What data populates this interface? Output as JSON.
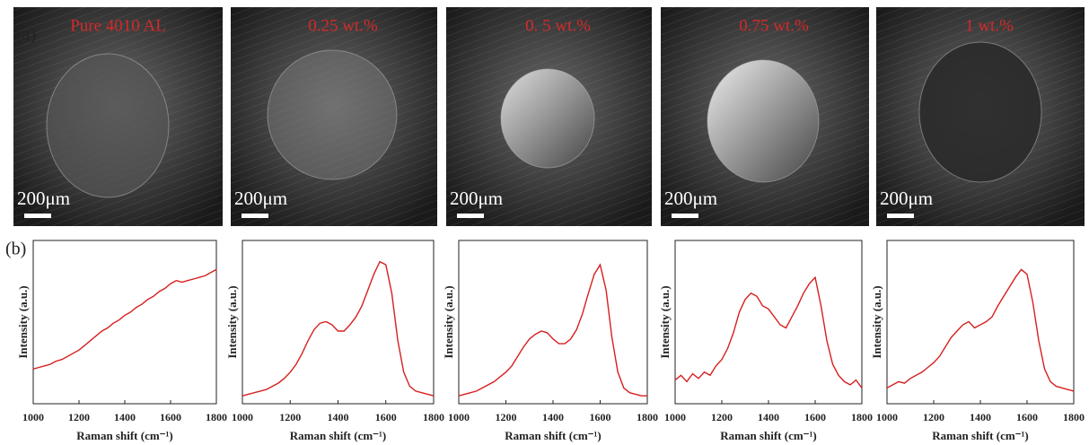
{
  "panel_a": "(a)",
  "panel_b": "(b)",
  "panels": [
    {
      "label": "Pure 4010 AL",
      "scale_bar": "200μm"
    },
    {
      "label": "0.25 wt.%",
      "scale_bar": "200μm"
    },
    {
      "label": "0. 5 wt.%",
      "scale_bar": "200μm"
    },
    {
      "label": "0.75 wt.%",
      "scale_bar": "200μm"
    },
    {
      "label": "1 wt.%",
      "scale_bar": "200μm"
    }
  ],
  "chart_data": [
    {
      "type": "line",
      "x_label": "Raman shift (cm⁻¹)",
      "y_label": "Intensity (a.u.)",
      "color": "#d62020",
      "xlim": [
        1000,
        1800
      ],
      "xticks": [
        1000,
        1200,
        1400,
        1600,
        1800
      ],
      "ylim": [
        0,
        100
      ],
      "x": [
        1000,
        1025,
        1050,
        1075,
        1100,
        1125,
        1150,
        1175,
        1200,
        1225,
        1250,
        1275,
        1300,
        1325,
        1350,
        1375,
        1400,
        1425,
        1450,
        1475,
        1500,
        1525,
        1550,
        1575,
        1600,
        1625,
        1650,
        1675,
        1700,
        1725,
        1750,
        1775,
        1800
      ],
      "values": [
        22,
        23,
        24,
        25,
        27,
        28,
        30,
        32,
        34,
        37,
        40,
        43,
        46,
        48,
        51,
        53,
        56,
        58,
        61,
        63,
        66,
        68,
        71,
        73,
        76,
        78,
        77,
        78,
        79,
        80,
        81,
        83,
        85
      ]
    },
    {
      "type": "line",
      "x_label": "Raman shift (cm⁻¹)",
      "y_label": "Intensity (a.u.)",
      "color": "#d62020",
      "xlim": [
        1000,
        1800
      ],
      "xticks": [
        1000,
        1200,
        1400,
        1600,
        1800
      ],
      "ylim": [
        0,
        100
      ],
      "x": [
        1000,
        1025,
        1050,
        1075,
        1100,
        1125,
        1150,
        1175,
        1200,
        1225,
        1250,
        1275,
        1300,
        1325,
        1350,
        1375,
        1400,
        1425,
        1450,
        1475,
        1500,
        1525,
        1550,
        1575,
        1600,
        1625,
        1650,
        1675,
        1700,
        1725,
        1750,
        1775,
        1800
      ],
      "values": [
        5,
        6,
        7,
        8,
        9,
        11,
        13,
        16,
        20,
        25,
        32,
        40,
        47,
        51,
        52,
        50,
        46,
        46,
        50,
        55,
        62,
        72,
        82,
        90,
        88,
        70,
        40,
        20,
        11,
        8,
        7,
        6,
        5
      ]
    },
    {
      "type": "line",
      "x_label": "Raman shift (cm⁻¹)",
      "y_label": "Intensity (a.u.)",
      "color": "#d62020",
      "xlim": [
        1000,
        1800
      ],
      "xticks": [
        1000,
        1200,
        1400,
        1600,
        1800
      ],
      "ylim": [
        0,
        100
      ],
      "x": [
        1000,
        1025,
        1050,
        1075,
        1100,
        1125,
        1150,
        1175,
        1200,
        1225,
        1250,
        1275,
        1300,
        1325,
        1350,
        1375,
        1400,
        1425,
        1450,
        1475,
        1500,
        1525,
        1550,
        1575,
        1600,
        1625,
        1650,
        1675,
        1700,
        1725,
        1750,
        1775,
        1800
      ],
      "values": [
        5,
        6,
        7,
        8,
        10,
        12,
        14,
        17,
        20,
        24,
        30,
        36,
        41,
        44,
        46,
        45,
        41,
        38,
        38,
        41,
        47,
        57,
        70,
        82,
        88,
        72,
        42,
        20,
        10,
        7,
        6,
        5,
        5
      ]
    },
    {
      "type": "line",
      "x_label": "Raman shift (cm⁻¹)",
      "y_label": "Intensity (a.u.)",
      "color": "#d62020",
      "xlim": [
        1000,
        1800
      ],
      "xticks": [
        1000,
        1200,
        1400,
        1600,
        1800
      ],
      "ylim": [
        0,
        100
      ],
      "x": [
        1000,
        1025,
        1050,
        1075,
        1100,
        1125,
        1150,
        1175,
        1200,
        1225,
        1250,
        1275,
        1300,
        1325,
        1350,
        1375,
        1400,
        1425,
        1450,
        1475,
        1500,
        1525,
        1550,
        1575,
        1600,
        1625,
        1650,
        1675,
        1700,
        1725,
        1750,
        1775,
        1800
      ],
      "values": [
        15,
        18,
        14,
        19,
        16,
        20,
        18,
        24,
        28,
        35,
        45,
        58,
        66,
        70,
        68,
        62,
        60,
        55,
        50,
        48,
        55,
        62,
        70,
        76,
        80,
        62,
        40,
        25,
        18,
        14,
        12,
        15,
        10
      ]
    },
    {
      "type": "line",
      "x_label": "Raman shift (cm⁻¹)",
      "y_label": "Intensity (a.u.)",
      "color": "#d62020",
      "xlim": [
        1000,
        1800
      ],
      "xticks": [
        1000,
        1200,
        1400,
        1600,
        1800
      ],
      "ylim": [
        0,
        100
      ],
      "x": [
        1000,
        1025,
        1050,
        1075,
        1100,
        1125,
        1150,
        1175,
        1200,
        1225,
        1250,
        1275,
        1300,
        1325,
        1350,
        1375,
        1400,
        1425,
        1450,
        1475,
        1500,
        1525,
        1550,
        1575,
        1600,
        1625,
        1650,
        1675,
        1700,
        1725,
        1750,
        1775,
        1800
      ],
      "values": [
        10,
        12,
        14,
        13,
        16,
        18,
        20,
        23,
        26,
        30,
        36,
        42,
        46,
        50,
        52,
        48,
        50,
        52,
        55,
        62,
        68,
        74,
        80,
        85,
        82,
        64,
        40,
        22,
        14,
        11,
        10,
        9,
        8
      ]
    }
  ]
}
